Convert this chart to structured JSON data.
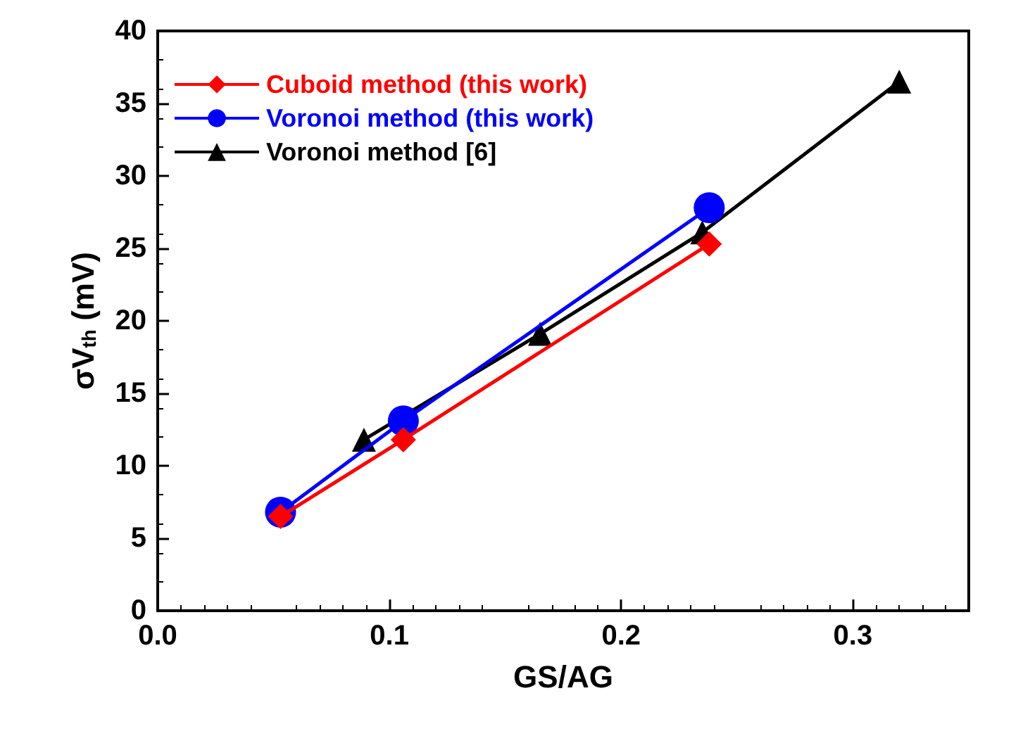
{
  "chart_data": {
    "type": "line",
    "xlabel": "GS/AG",
    "ylabel": "σV$_{th}$ (mV)",
    "xlim": [
      0,
      0.35
    ],
    "xticks": [
      {
        "value": 0,
        "label": "0.0"
      },
      0.1,
      0.2,
      0.3
    ],
    "ylim": [
      0,
      40
    ],
    "yticks": [
      0,
      5,
      10,
      15,
      20,
      25,
      30,
      35,
      40
    ],
    "grid": false,
    "legend": "top left",
    "series": [
      {
        "name": "Cuboid method (this work)",
        "color": "#ff0000",
        "marker": "diamond",
        "x": [
          0.053,
          0.106,
          0.238
        ],
        "values": [
          6.5,
          11.8,
          25.3
        ]
      },
      {
        "name": "Voronoi method (this work)",
        "color": "#0000ff",
        "marker": "circle",
        "x": [
          0.053,
          0.106,
          0.238
        ],
        "values": [
          6.8,
          13.1,
          27.8
        ]
      },
      {
        "name": "Voronoi method [6]",
        "color": "#000000",
        "marker": "triangle",
        "x": [
          0.089,
          0.165,
          0.235,
          0.32
        ],
        "values": [
          11.8,
          19.1,
          26.1,
          36.5
        ]
      }
    ]
  }
}
